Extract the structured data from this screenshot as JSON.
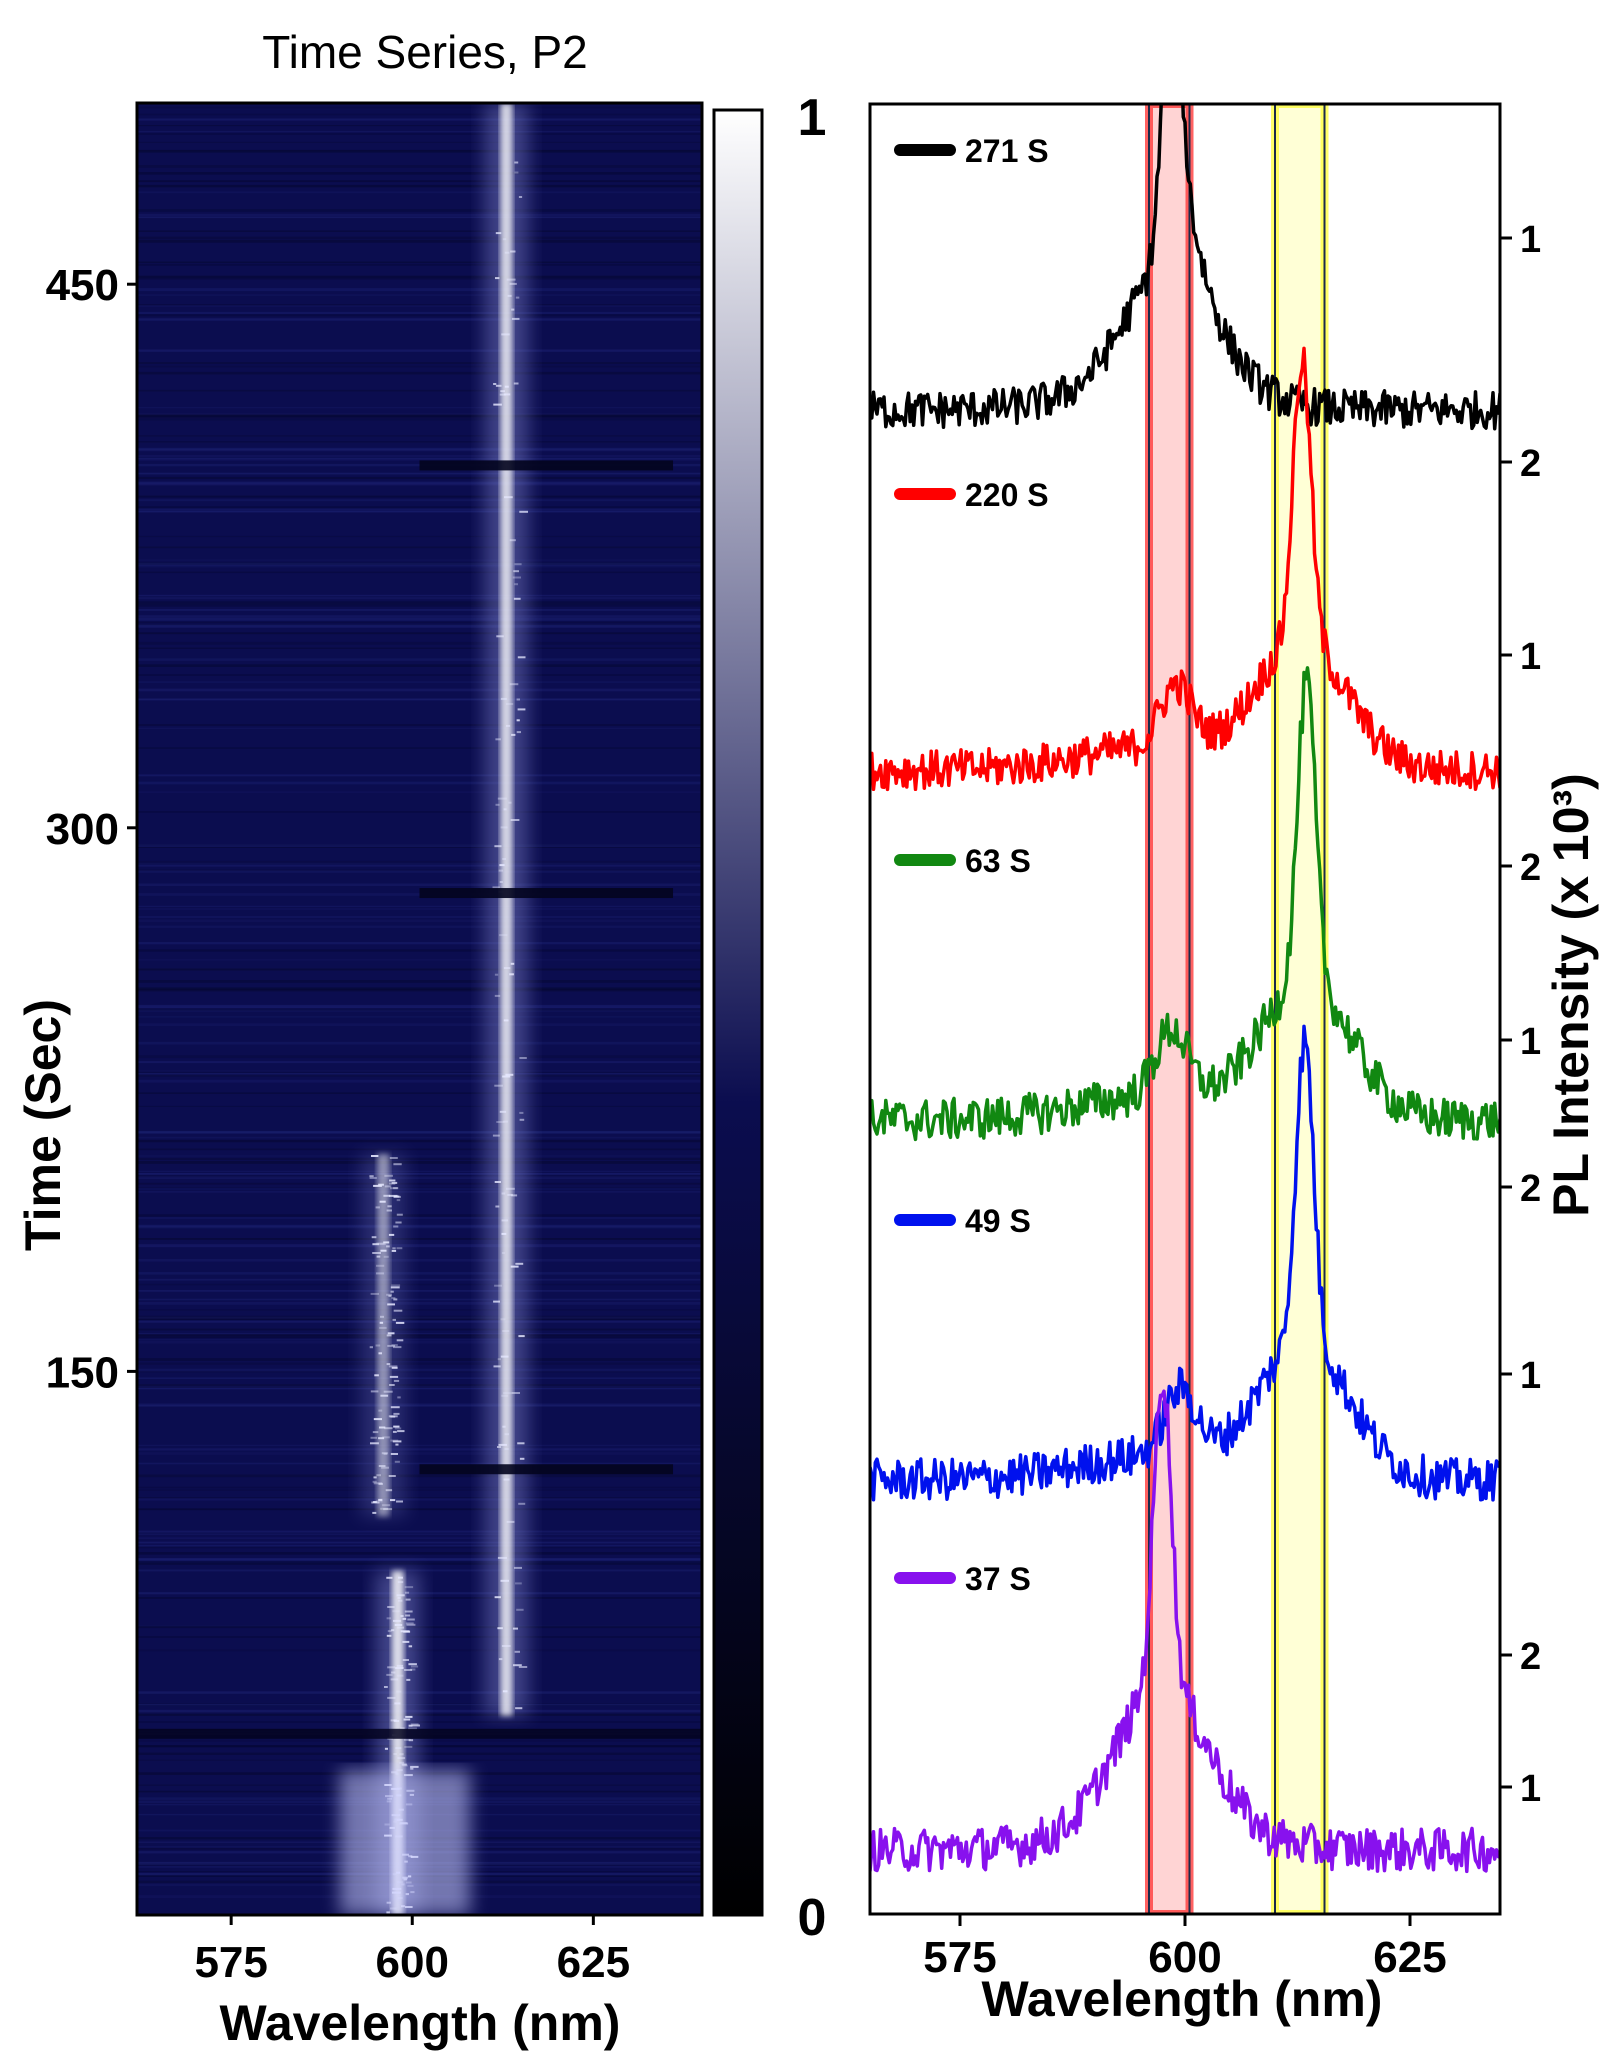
{
  "chart_data": [
    {
      "type": "heatmap",
      "title": "Time Series, P2",
      "xlabel": "Wavelength (nm)",
      "ylabel": "Time (Sec)",
      "xlim": [
        562,
        640
      ],
      "ylim": [
        0,
        500
      ],
      "x_ticks": [
        "575",
        "600",
        "625"
      ],
      "y_ticks": [
        "150",
        "300",
        "450"
      ],
      "colorbar": {
        "min_label": "0",
        "max_label": "1",
        "colors": [
          "#000000",
          "#0b0d4f",
          "#ffffff"
        ]
      },
      "features": [
        {
          "name": "",
          "wavelength": 613,
          "t_start": 55,
          "t_end": 500,
          "intensity": 0.9
        },
        {
          "name": "",
          "wavelength": 598,
          "t_start": 0,
          "t_end": 95,
          "intensity": 0.95
        },
        {
          "name": "",
          "wavelength": 596,
          "t_start": 110,
          "t_end": 210,
          "intensity": 0.55
        }
      ],
      "gaps_time": [
        123,
        282,
        400
      ]
    },
    {
      "type": "line",
      "title": "",
      "xlabel": "Wavelength (nm)",
      "ylabel": "PL Intensity (x 10³)",
      "xlim": [
        565,
        635
      ],
      "x_ticks": [
        "575",
        "600",
        "625"
      ],
      "highlight_bands": [
        {
          "range": [
            596,
            600.5
          ],
          "color": "#ff3b3b"
        },
        {
          "range": [
            610,
            615.5
          ],
          "color": "#ffff44"
        }
      ],
      "series": [
        {
          "name": "271 S",
          "color": "#000000",
          "offset": 0,
          "peak_wavelength": 598.5,
          "right_ticks": [
            "1",
            "2"
          ]
        },
        {
          "name": "220 S",
          "color": "#ff0000",
          "offset": 1,
          "peak_wavelength": 613,
          "right_ticks": [
            "1"
          ]
        },
        {
          "name": "63 S",
          "color": "#118811",
          "offset": 2,
          "peak_wavelength": 613.5,
          "right_ticks": [
            "2",
            "1",
            "2"
          ]
        },
        {
          "name": "49 S",
          "color": "#0011ee",
          "offset": 3,
          "peak_wavelength": 613.3,
          "right_ticks": [
            "1"
          ]
        },
        {
          "name": "37 S",
          "color": "#8811ee",
          "offset": 4,
          "peak_wavelength": 597.5,
          "right_ticks": [
            "2",
            "1"
          ]
        }
      ]
    }
  ]
}
